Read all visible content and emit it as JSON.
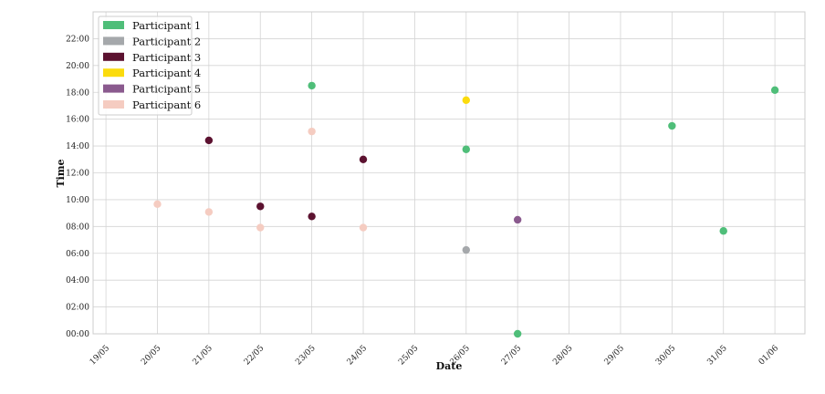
{
  "chart_data": {
    "type": "scatter",
    "xlabel": "Date",
    "ylabel": "Time",
    "x_ticks": [
      "19/05",
      "20/05",
      "21/05",
      "22/05",
      "23/05",
      "24/05",
      "25/05",
      "26/05",
      "27/05",
      "28/05",
      "29/05",
      "30/05",
      "31/05",
      "01/06"
    ],
    "y_ticks": [
      "00:00",
      "02:00",
      "04:00",
      "06:00",
      "08:00",
      "10:00",
      "12:00",
      "14:00",
      "16:00",
      "18:00",
      "20:00",
      "22:00"
    ],
    "xlim": [
      "2023-05-18T18:00",
      "2023-06-01T14:00"
    ],
    "ylim_hours": [
      0,
      24
    ],
    "grid": true,
    "legend_position": "top-left",
    "series": [
      {
        "name": "Participant 1",
        "color": "#4fbe79",
        "points": [
          {
            "date": "23/05",
            "time": "18:30"
          },
          {
            "date": "26/05",
            "time": "13:45"
          },
          {
            "date": "27/05",
            "time": "00:00"
          },
          {
            "date": "30/05",
            "time": "15:30"
          },
          {
            "date": "31/05",
            "time": "07:40"
          },
          {
            "date": "01/06",
            "time": "18:10"
          }
        ]
      },
      {
        "name": "Participant 2",
        "color": "#a5a8ab",
        "points": [
          {
            "date": "26/05",
            "time": "06:15"
          }
        ]
      },
      {
        "name": "Participant 3",
        "color": "#5c1230",
        "points": [
          {
            "date": "21/05",
            "time": "14:25"
          },
          {
            "date": "22/05",
            "time": "09:30"
          },
          {
            "date": "23/05",
            "time": "08:45"
          },
          {
            "date": "24/05",
            "time": "13:00"
          }
        ]
      },
      {
        "name": "Participant 4",
        "color": "#fbdb0d",
        "points": [
          {
            "date": "26/05",
            "time": "17:25"
          }
        ]
      },
      {
        "name": "Participant 5",
        "color": "#8a5a8e",
        "points": [
          {
            "date": "27/05",
            "time": "08:30"
          }
        ]
      },
      {
        "name": "Participant 6",
        "color": "#f5ccc1",
        "points": [
          {
            "date": "20/05",
            "time": "09:40"
          },
          {
            "date": "21/05",
            "time": "09:05"
          },
          {
            "date": "22/05",
            "time": "07:55"
          },
          {
            "date": "23/05",
            "time": "15:05"
          },
          {
            "date": "24/05",
            "time": "07:55"
          }
        ]
      }
    ]
  }
}
